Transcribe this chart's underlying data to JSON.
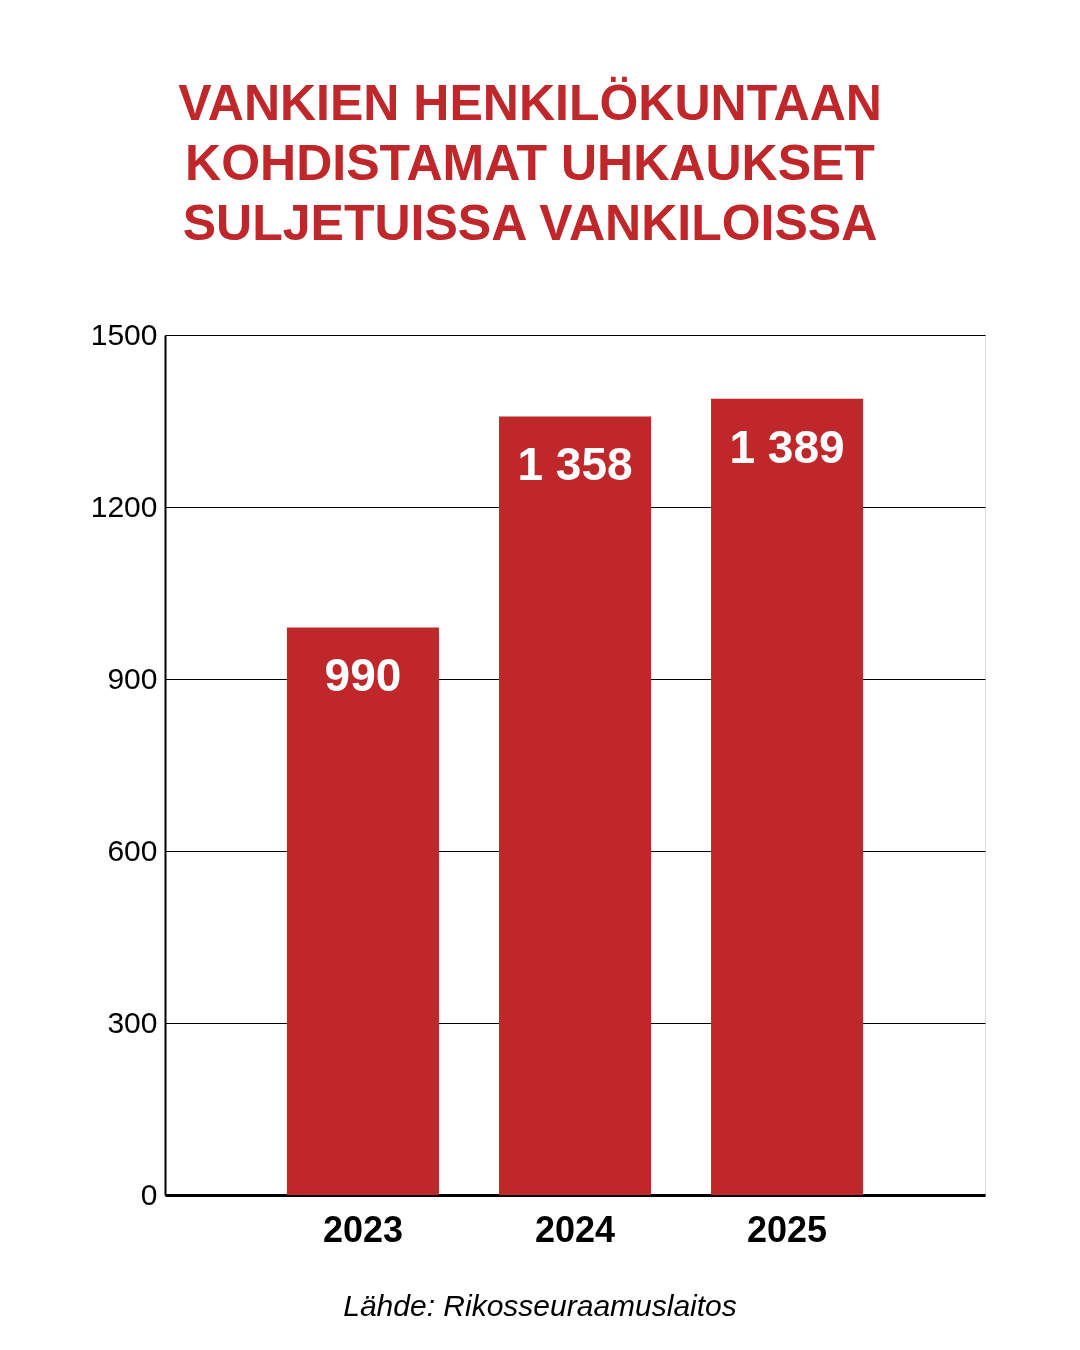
{
  "chart_data": {
    "type": "bar",
    "title": [
      "VANKIEN HENKILÖKUNTAAN",
      "KOHDISTAMAT UHKAUKSET",
      "SULJETUISSA VANKILOISSA"
    ],
    "categories": [
      "2023",
      "2024",
      "2025"
    ],
    "values": [
      990,
      1358,
      1389
    ],
    "value_labels": [
      "990",
      "1 358",
      "1 389"
    ],
    "color": "#c0272b",
    "ylim": [
      0,
      1500
    ],
    "yticks": [
      0,
      300,
      600,
      900,
      1200,
      1500
    ],
    "grid": "y",
    "annotations": [
      "Lähde: Rikosseuraamuslaitos"
    ]
  }
}
